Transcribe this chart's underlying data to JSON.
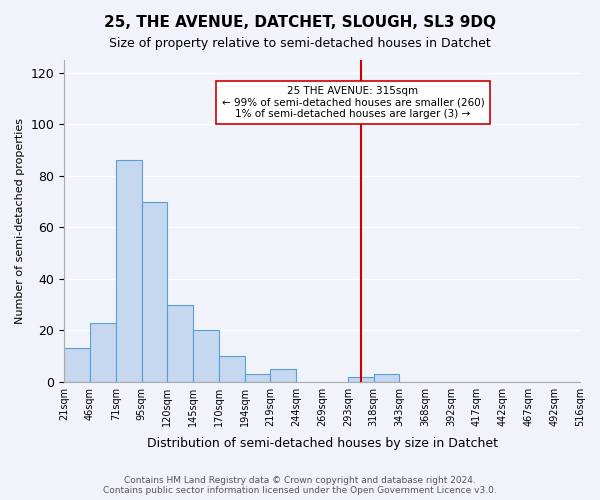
{
  "title": "25, THE AVENUE, DATCHET, SLOUGH, SL3 9DQ",
  "subtitle": "Size of property relative to semi-detached houses in Datchet",
  "xlabel": "Distribution of semi-detached houses by size in Datchet",
  "ylabel": "Number of semi-detached properties",
  "bar_color": "#c5d8f0",
  "bar_edge_color": "#5a9fd4",
  "background_color": "#f0f4fa",
  "grid_color": "#ffffff",
  "bin_labels": [
    "21sqm",
    "46sqm",
    "71sqm",
    "95sqm",
    "120sqm",
    "145sqm",
    "170sqm",
    "194sqm",
    "219sqm",
    "244sqm",
    "269sqm",
    "293sqm",
    "318sqm",
    "343sqm",
    "368sqm",
    "392sqm",
    "417sqm",
    "442sqm",
    "467sqm",
    "492sqm",
    "516sqm"
  ],
  "bar_heights": [
    13,
    23,
    86,
    70,
    30,
    20,
    10,
    3,
    5,
    0,
    0,
    2,
    3,
    0,
    0,
    0,
    0,
    0,
    0,
    0
  ],
  "ylim": [
    0,
    125
  ],
  "yticks": [
    0,
    20,
    40,
    60,
    80,
    100,
    120
  ],
  "property_line_x": 11.5,
  "property_value": "315sqm",
  "property_name": "25 THE AVENUE",
  "smaller_pct": 99,
  "smaller_count": 260,
  "larger_pct": 1,
  "larger_count": 3,
  "annotation_box_edge_color": "#cc0000",
  "property_line_color": "#cc0000",
  "footer_line1": "Contains HM Land Registry data © Crown copyright and database right 2024.",
  "footer_line2": "Contains public sector information licensed under the Open Government Licence v3.0."
}
